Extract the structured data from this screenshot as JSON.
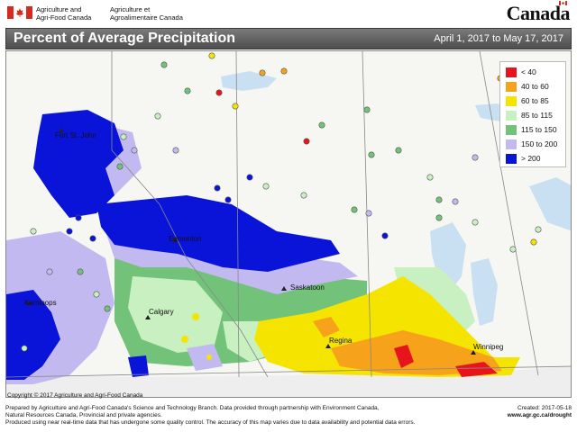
{
  "header": {
    "dept_en_line1": "Agriculture and",
    "dept_en_line2": "Agri-Food Canada",
    "dept_fr_line1": "Agriculture et",
    "dept_fr_line2": "Agroalimentaire Canada",
    "wordmark": "Canada"
  },
  "title": {
    "text": "Percent of Average Precipitation",
    "date_range": "April 1, 2017 to May 17, 2017"
  },
  "legend": [
    {
      "label": "< 40",
      "color": "#e8141c"
    },
    {
      "label": "40 to 60",
      "color": "#f7a21b"
    },
    {
      "label": "60 to 85",
      "color": "#f5e400"
    },
    {
      "label": "85 to 115",
      "color": "#c8f0c0"
    },
    {
      "label": "115 to 150",
      "color": "#73c27a"
    },
    {
      "label": "150 to 200",
      "color": "#c3b9f1"
    },
    {
      "label": "> 200",
      "color": "#0a14d8"
    }
  ],
  "cities": [
    {
      "name": "Fort St. John"
    },
    {
      "name": "Edmonton"
    },
    {
      "name": "Saskatoon"
    },
    {
      "name": "Calgary"
    },
    {
      "name": "Regina"
    },
    {
      "name": "Kamloops"
    },
    {
      "name": "Winnipeg"
    }
  ],
  "copyright": "Copyright © 2017 Agriculture and Agri-Food Canada",
  "footer": {
    "line1": "Prepared by Agriculture and Agri-Food Canada's Science and Technology Branch. Data provided through partnership with Environment Canada,",
    "line2": "Natural Resources Canada, Provincial and private agencies.",
    "line3": "Produced using near real-time data that has undergone some quality control. The accuracy of this map varies due to data availability and potential data errors.",
    "created": "Created: 2017-05-18",
    "url": "www.agr.gc.ca/drought"
  }
}
